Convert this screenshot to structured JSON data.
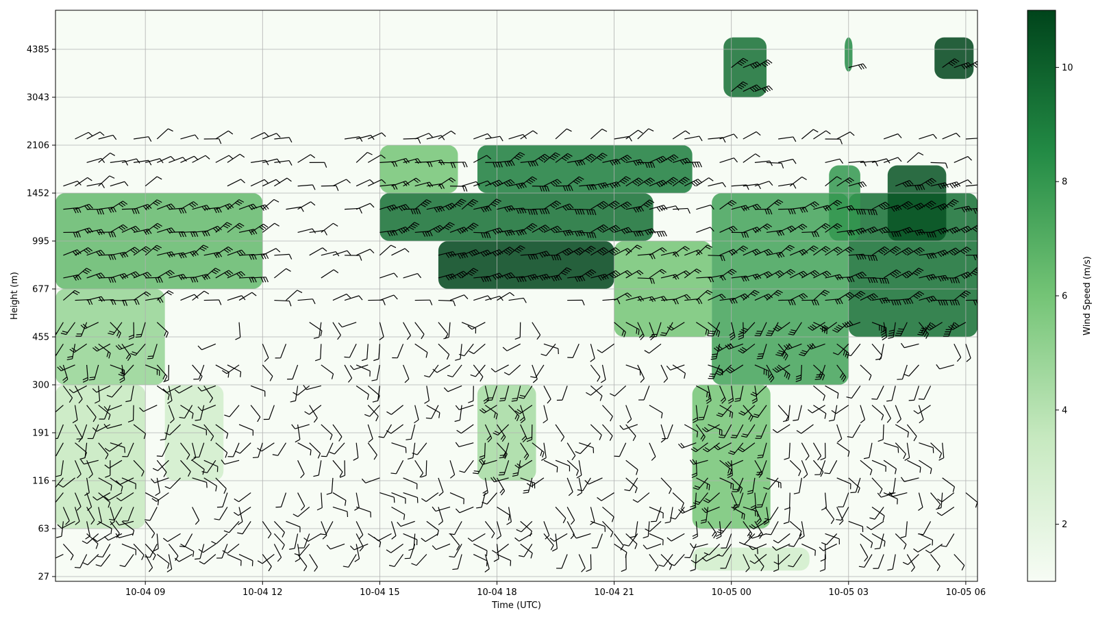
{
  "chart_data": {
    "type": "heatmap",
    "subtype": "wind-barbs-over-colormap",
    "xlabel": "Time (UTC)",
    "ylabel": "Height (m)",
    "colorbar_label": "Wind Speed (m/s)",
    "colormap": "Greens",
    "color_low": "#f7fcf5",
    "color_high": "#00441b",
    "colorbar_range": [
      1.0,
      11.0
    ],
    "colorbar_ticks": [
      "2",
      "4",
      "6",
      "8",
      "10"
    ],
    "colorbar_tick_values": [
      2,
      4,
      6,
      8,
      10
    ],
    "x_ticks": [
      "10-04 09",
      "10-04 12",
      "10-04 15",
      "10-04 18",
      "10-04 21",
      "10-05 00",
      "10-05 03",
      "10-05 06"
    ],
    "x_tick_hours": [
      9,
      12,
      15,
      18,
      21,
      24,
      27,
      30
    ],
    "x_range_hours": [
      6.7,
      30.3
    ],
    "y_ticks": [
      "27",
      "63",
      "116",
      "191",
      "300",
      "455",
      "677",
      "995",
      "1452",
      "2106",
      "3043",
      "4385"
    ],
    "y_scale": "log-like (height levels)",
    "grid": true,
    "wind_speed_field": [
      {
        "hours": [
          6.7,
          12.0
        ],
        "heights": [
          677,
          1452
        ],
        "speed": 6.5
      },
      {
        "hours": [
          6.7,
          9.5
        ],
        "heights": [
          300,
          677
        ],
        "speed": 5.0
      },
      {
        "hours": [
          6.7,
          9.0
        ],
        "heights": [
          63,
          300
        ],
        "speed": 3.5
      },
      {
        "hours": [
          9.5,
          11.0
        ],
        "heights": [
          116,
          300
        ],
        "speed": 3.0
      },
      {
        "hours": [
          15.0,
          17.0
        ],
        "heights": [
          1452,
          2106
        ],
        "speed": 6.0
      },
      {
        "hours": [
          15.0,
          22.0
        ],
        "heights": [
          995,
          1452
        ],
        "speed": 9.5
      },
      {
        "hours": [
          16.5,
          21.0
        ],
        "heights": [
          677,
          995
        ],
        "speed": 11.0
      },
      {
        "hours": [
          17.5,
          23.0
        ],
        "heights": [
          1452,
          2106
        ],
        "speed": 9.0
      },
      {
        "hours": [
          21.0,
          23.5
        ],
        "heights": [
          455,
          995
        ],
        "speed": 6.0
      },
      {
        "hours": [
          23.5,
          27.0
        ],
        "heights": [
          300,
          1452
        ],
        "speed": 7.5
      },
      {
        "hours": [
          27.0,
          30.3
        ],
        "heights": [
          455,
          1452
        ],
        "speed": 9.5
      },
      {
        "hours": [
          28.0,
          29.5
        ],
        "heights": [
          995,
          1800
        ],
        "speed": 10.5
      },
      {
        "hours": [
          23.0,
          25.0
        ],
        "heights": [
          63,
          300
        ],
        "speed": 6.0
      },
      {
        "hours": [
          17.5,
          19.0
        ],
        "heights": [
          116,
          300
        ],
        "speed": 4.5
      },
      {
        "hours": [
          23.8,
          24.9
        ],
        "heights": [
          3043,
          4800
        ],
        "speed": 9.5
      },
      {
        "hours": [
          26.9,
          27.1
        ],
        "heights": [
          3700,
          4800
        ],
        "speed": 8.5
      },
      {
        "hours": [
          29.2,
          30.2
        ],
        "heights": [
          3500,
          4800
        ],
        "speed": 11.0
      },
      {
        "hours": [
          26.5,
          27.3
        ],
        "heights": [
          995,
          1800
        ],
        "speed": 8.0
      },
      {
        "hours": [
          23.0,
          26.0
        ],
        "heights": [
          30,
          45
        ],
        "speed": 3.0
      }
    ]
  }
}
